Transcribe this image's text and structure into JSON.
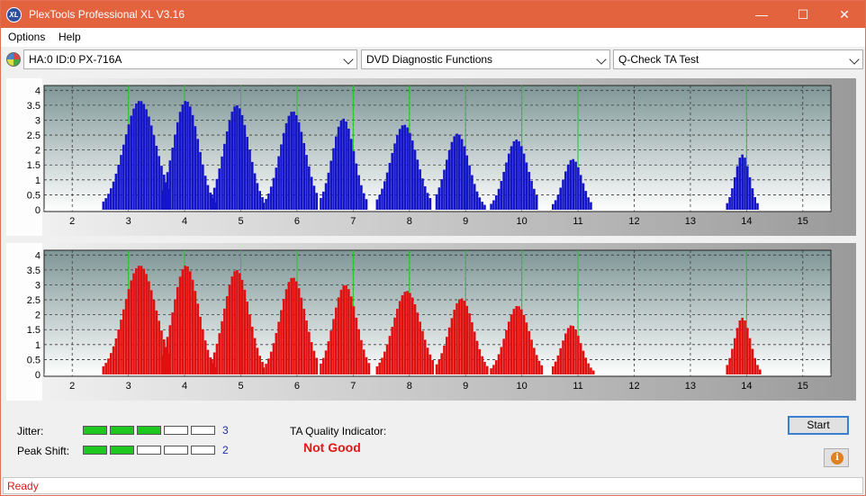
{
  "window": {
    "title": "PlexTools Professional XL V3.16",
    "icon_text": "XL",
    "minimize_glyph": "—",
    "maximize_glyph": "☐",
    "close_glyph": "✕"
  },
  "menu": {
    "items": [
      {
        "label": "Options"
      },
      {
        "label": "Help"
      }
    ]
  },
  "toolbar": {
    "drive": {
      "value": "HA:0 ID:0  PX-716A"
    },
    "function": {
      "value": "DVD Diagnostic Functions"
    },
    "test": {
      "value": "Q-Check TA Test"
    }
  },
  "colors": {
    "top_bars": "#1414c8",
    "bottom_bars": "#e01010",
    "marker_lines": "#22cc22",
    "plot_bg_top": "#7f9696",
    "plot_bg_bottom": "#ffffff"
  },
  "chart_data": [
    {
      "type": "bar",
      "series_color": "blue",
      "xlim": [
        1.5,
        15.5
      ],
      "ylim": [
        0,
        4.1
      ],
      "x_ticks": [
        "2",
        "3",
        "4",
        "5",
        "6",
        "7",
        "8",
        "9",
        "10",
        "11",
        "12",
        "13",
        "14",
        "15"
      ],
      "y_ticks": [
        "4",
        "3.5",
        "3",
        "2.5",
        "2",
        "1.5",
        "1",
        "0.5",
        "0"
      ],
      "marker_lines_x": [
        3,
        4,
        5,
        6,
        7,
        8,
        9,
        10,
        11,
        14
      ],
      "peaks": [
        {
          "center": 3.2,
          "height": 3.65,
          "x_from": 2.55,
          "x_to": 3.75
        },
        {
          "center": 4.02,
          "height": 3.65,
          "x_from": 3.6,
          "x_to": 4.55
        },
        {
          "center": 4.92,
          "height": 3.5,
          "x_from": 4.48,
          "x_to": 5.42
        },
        {
          "center": 5.92,
          "height": 3.3,
          "x_from": 5.4,
          "x_to": 6.35
        },
        {
          "center": 6.82,
          "height": 3.05,
          "x_from": 6.42,
          "x_to": 7.25
        },
        {
          "center": 7.9,
          "height": 2.85,
          "x_from": 7.42,
          "x_to": 8.4
        },
        {
          "center": 8.85,
          "height": 2.55,
          "x_from": 8.48,
          "x_to": 9.35
        },
        {
          "center": 9.9,
          "height": 2.35,
          "x_from": 9.45,
          "x_to": 10.3
        },
        {
          "center": 10.9,
          "height": 1.7,
          "x_from": 10.55,
          "x_to": 11.25
        },
        {
          "center": 13.92,
          "height": 1.85,
          "x_from": 13.65,
          "x_to": 14.2
        }
      ]
    },
    {
      "type": "bar",
      "series_color": "red",
      "xlim": [
        1.5,
        15.5
      ],
      "ylim": [
        0,
        4.1
      ],
      "x_ticks": [
        "2",
        "3",
        "4",
        "5",
        "6",
        "7",
        "8",
        "9",
        "10",
        "11",
        "12",
        "13",
        "14",
        "15"
      ],
      "y_ticks": [
        "4",
        "3.5",
        "3",
        "2.5",
        "2",
        "1.5",
        "1",
        "0.5",
        "0"
      ],
      "marker_lines_x": [
        3,
        4,
        5,
        6,
        7,
        8,
        9,
        10,
        11,
        14
      ],
      "peaks": [
        {
          "center": 3.2,
          "height": 3.65,
          "x_from": 2.55,
          "x_to": 3.75
        },
        {
          "center": 4.02,
          "height": 3.65,
          "x_from": 3.6,
          "x_to": 4.55
        },
        {
          "center": 4.92,
          "height": 3.5,
          "x_from": 4.48,
          "x_to": 5.42
        },
        {
          "center": 5.92,
          "height": 3.25,
          "x_from": 5.4,
          "x_to": 6.35
        },
        {
          "center": 6.85,
          "height": 3.0,
          "x_from": 6.42,
          "x_to": 7.3
        },
        {
          "center": 7.95,
          "height": 2.8,
          "x_from": 7.42,
          "x_to": 8.45
        },
        {
          "center": 8.92,
          "height": 2.55,
          "x_from": 8.48,
          "x_to": 9.4
        },
        {
          "center": 9.92,
          "height": 2.3,
          "x_from": 9.45,
          "x_to": 10.35
        },
        {
          "center": 10.88,
          "height": 1.65,
          "x_from": 10.55,
          "x_to": 11.28
        },
        {
          "center": 13.92,
          "height": 1.9,
          "x_from": 13.65,
          "x_to": 14.25
        }
      ]
    }
  ],
  "bottom": {
    "jitter": {
      "label": "Jitter:",
      "value": "3",
      "level": 3,
      "max": 5
    },
    "peak_shift": {
      "label": "Peak Shift:",
      "value": "2",
      "level": 2,
      "max": 5
    },
    "ta_quality": {
      "label": "TA Quality Indicator:",
      "value": "Not Good"
    },
    "start_label": "Start",
    "info_glyph": "i"
  },
  "status": {
    "text": "Ready"
  }
}
